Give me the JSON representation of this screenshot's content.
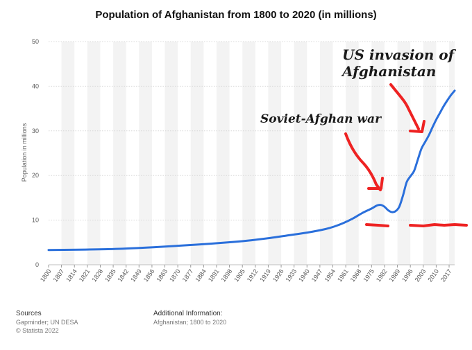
{
  "chart_data": {
    "type": "line",
    "title": "Population of Afghanistan from 1800 to 2020 (in millions)",
    "xlabel": "",
    "ylabel": "Population in millions",
    "ylim": [
      0,
      50
    ],
    "yticks": [
      0,
      10,
      20,
      30,
      40,
      50
    ],
    "xlim": [
      1800,
      2020
    ],
    "categories": [
      "1800",
      "1807",
      "1814",
      "1821",
      "1828",
      "1835",
      "1842",
      "1849",
      "1856",
      "1863",
      "1870",
      "1877",
      "1884",
      "1891",
      "1898",
      "1905",
      "1912",
      "1919",
      "1926",
      "1933",
      "1940",
      "1947",
      "1954",
      "1961",
      "1968",
      "1975",
      "1982",
      "1989",
      "1996",
      "2003",
      "2010",
      "2017"
    ],
    "grid": true,
    "series": [
      {
        "name": "Population",
        "color": "#2a6fdb",
        "x": [
          1800,
          1820,
          1840,
          1860,
          1880,
          1900,
          1910,
          1920,
          1930,
          1940,
          1950,
          1955,
          1960,
          1965,
          1970,
          1975,
          1978,
          1980,
          1982,
          1984,
          1986,
          1988,
          1990,
          1992,
          1994,
          1996,
          1998,
          2000,
          2002,
          2004,
          2006,
          2008,
          2010,
          2012,
          2014,
          2016,
          2018,
          2020
        ],
        "values": [
          3.3,
          3.4,
          3.6,
          4.0,
          4.5,
          5.1,
          5.5,
          6.0,
          6.6,
          7.2,
          8.0,
          8.6,
          9.4,
          10.4,
          11.6,
          12.6,
          13.3,
          13.4,
          13.0,
          12.2,
          11.8,
          12.0,
          13.0,
          15.5,
          18.5,
          19.8,
          21.0,
          23.5,
          26.0,
          27.5,
          29.0,
          30.8,
          32.5,
          34.0,
          35.5,
          36.8,
          38.0,
          39.0
        ]
      }
    ],
    "annotations": [
      {
        "text": "Soviet-Afghan war",
        "target_year": 1982
      },
      {
        "text_lines": [
          "US invasion of",
          "Afghanistan"
        ],
        "target_year": 2003
      }
    ]
  },
  "colors": {
    "line": "#2a6fdb",
    "annotation_marks": "#ee2222",
    "grid": "#d8d8d8",
    "band": "#f3f3f3"
  },
  "footer": {
    "sources_heading": "Sources",
    "sources_lines": [
      "Gapminder; UN DESA",
      "© Statista 2022"
    ],
    "info_heading": "Additional Information:",
    "info_lines": [
      "Afghanistan; 1800 to 2020"
    ]
  }
}
